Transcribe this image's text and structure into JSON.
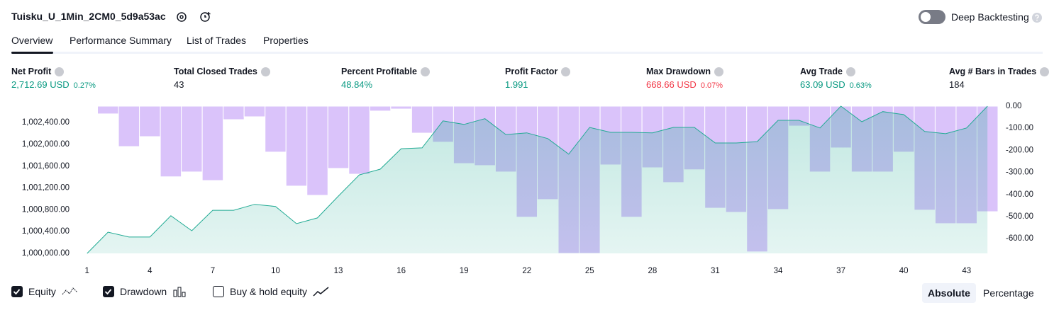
{
  "header": {
    "title": "Tuisku_U_1Min_2CM0_5d9a53ac",
    "deep_backtesting": "Deep Backtesting"
  },
  "tabs": [
    "Overview",
    "Performance Summary",
    "List of Trades",
    "Properties"
  ],
  "active_tab": "Overview",
  "metrics": [
    {
      "label": "Net Profit",
      "value": "2,712.69 USD",
      "percent": "0.27%",
      "color": "#089981"
    },
    {
      "label": "Total Closed Trades",
      "value": "43",
      "color": "#131722"
    },
    {
      "label": "Percent Profitable",
      "value": "48.84%",
      "color": "#089981"
    },
    {
      "label": "Profit Factor",
      "value": "1.991",
      "color": "#089981"
    },
    {
      "label": "Max Drawdown",
      "value": "668.66 USD",
      "percent": "0.07%",
      "color": "#f23645"
    },
    {
      "label": "Avg Trade",
      "value": "63.09 USD",
      "percent": "0.63%",
      "color": "#089981"
    },
    {
      "label": "Avg # Bars in Trades",
      "value": "184",
      "color": "#131722"
    }
  ],
  "chart_data": {
    "type": "combo",
    "x": [
      1,
      2,
      3,
      4,
      5,
      6,
      7,
      8,
      9,
      10,
      11,
      12,
      13,
      14,
      15,
      16,
      17,
      18,
      19,
      20,
      21,
      22,
      23,
      24,
      25,
      26,
      27,
      28,
      29,
      30,
      31,
      32,
      33,
      34,
      35,
      36,
      37,
      38,
      39,
      40,
      41,
      42,
      43,
      44
    ],
    "xlim": [
      0.5,
      44.5
    ],
    "xticks": [
      1,
      4,
      7,
      10,
      13,
      16,
      19,
      22,
      25,
      28,
      31,
      34,
      37,
      40,
      43
    ],
    "ylim": [
      1000000,
      1002700
    ],
    "yticks": [
      {
        "value": 1000000,
        "label": "1,000,000.00"
      },
      {
        "value": 1000400,
        "label": "1,000,400.00"
      },
      {
        "value": 1000800,
        "label": "1,000,800.00"
      },
      {
        "value": 1001200,
        "label": "1,001,200.00"
      },
      {
        "value": 1001600,
        "label": "1,001,600.00"
      },
      {
        "value": 1002000,
        "label": "1,002,000.00"
      },
      {
        "value": 1002400,
        "label": "1,002,400.00"
      }
    ],
    "y2lim": [
      -667,
      0
    ],
    "y2ticks": [
      {
        "value": 0,
        "label": "0.00"
      },
      {
        "value": -100,
        "label": "-100.00"
      },
      {
        "value": -200,
        "label": "-200.00"
      },
      {
        "value": -300,
        "label": "-300.00"
      },
      {
        "value": -400,
        "label": "-400.00"
      },
      {
        "value": -500,
        "label": "-500.00"
      },
      {
        "value": -600,
        "label": "-600.00"
      }
    ],
    "grid": false,
    "series": [
      {
        "name": "Drawdown",
        "type": "bar",
        "axis": "y2",
        "color": "#c29bf7",
        "values": [
          -3,
          -35,
          -183,
          -138,
          -320,
          -298,
          -337,
          -61,
          -48,
          -208,
          -362,
          -404,
          -282,
          -308,
          -22,
          -13,
          -122,
          -163,
          -260,
          -269,
          -298,
          -503,
          -423,
          -667,
          -667,
          -266,
          -503,
          -279,
          -346,
          -288,
          -462,
          -481,
          -660,
          -468,
          -90,
          -298,
          -189,
          -298,
          -298,
          -208,
          -471,
          -532,
          -532,
          -478
        ]
      },
      {
        "name": "Equity",
        "type": "area",
        "color": "#22ab94",
        "values": [
          1000000,
          1000390,
          1000300,
          1000300,
          1000690,
          1000415,
          1000790,
          1000790,
          1000900,
          1000860,
          1000545,
          1000650,
          1001050,
          1001440,
          1001545,
          1001920,
          1001935,
          1002430,
          1002365,
          1002470,
          1002180,
          1002210,
          1002105,
          1001820,
          1002310,
          1002220,
          1002220,
          1002210,
          1002310,
          1002310,
          1002025,
          1002025,
          1002050,
          1002440,
          1002440,
          1002300,
          1002700,
          1002415,
          1002600,
          1002545,
          1002235,
          1002195,
          1002300,
          1002700
        ]
      }
    ]
  },
  "legend": [
    {
      "label": "Equity",
      "checked": true
    },
    {
      "label": "Drawdown",
      "checked": true
    },
    {
      "label": "Buy & hold equity",
      "checked": false
    }
  ],
  "scale_toggle": {
    "options": [
      "Absolute",
      "Percentage"
    ],
    "selected": "Absolute"
  }
}
